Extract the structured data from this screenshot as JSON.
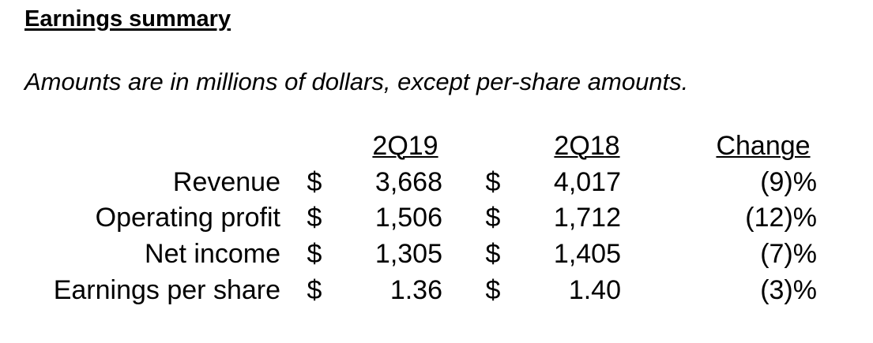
{
  "header": {
    "title": "Earnings summary",
    "subtitle": "Amounts are in millions of dollars, except per-share amounts."
  },
  "table": {
    "columns": [
      "2Q19",
      "2Q18",
      "Change"
    ],
    "rows": [
      [
        "Revenue",
        "$",
        "3,668",
        "$",
        "4,017",
        "(9)%"
      ],
      [
        "Operating profit",
        "$",
        "1,506",
        "$",
        "1,712",
        "(12)%"
      ],
      [
        "Net income",
        "$",
        "1,305",
        "$",
        "1,405",
        "(7)%"
      ],
      [
        "Earnings per share",
        "$",
        "1.36",
        "$",
        "1.40",
        "(3)%"
      ]
    ]
  }
}
